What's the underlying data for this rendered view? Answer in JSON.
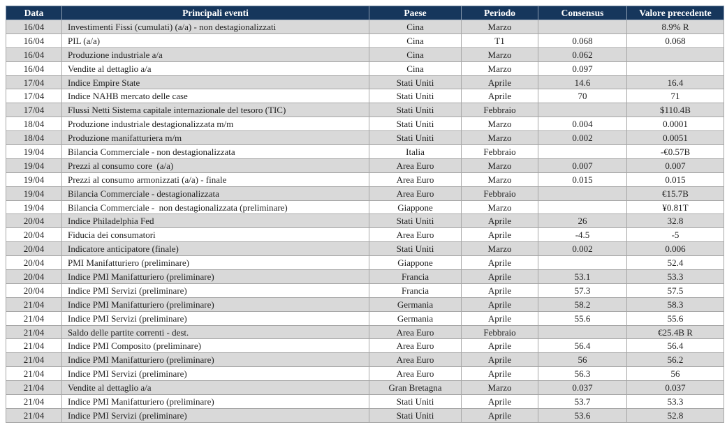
{
  "table": {
    "header": [
      "Data",
      "Principali eventi",
      "Paese",
      "Periodo",
      "Consensus",
      "Valore precedente"
    ],
    "rows": [
      [
        "16/04",
        "Investimenti Fissi (cumulati) (a/a) - non destagionalizzati",
        "Cina",
        "Marzo",
        null,
        "8.9% R"
      ],
      [
        "16/04",
        "PIL (a/a)",
        "Cina",
        "T1",
        "0.068",
        "0.068"
      ],
      [
        "16/04",
        "Produzione industriale a/a",
        "Cina",
        "Marzo",
        "0.062",
        null
      ],
      [
        "16/04",
        "Vendite al dettaglio a/a",
        "Cina",
        "Marzo",
        "0.097",
        null
      ],
      [
        "17/04",
        "Indice Empire State",
        "Stati Uniti",
        "Aprile",
        "14.6",
        "16.4"
      ],
      [
        "17/04",
        "Indice NAHB mercato delle case",
        "Stati Uniti",
        "Aprile",
        "70",
        "71"
      ],
      [
        "17/04",
        "Flussi Netti Sistema capitale internazionale del tesoro (TIC)",
        "Stati Uniti",
        "Febbraio",
        null,
        "$110.4B"
      ],
      [
        "18/04",
        "Produzione industriale destagionalizzata m/m",
        "Stati Uniti",
        "Marzo",
        "0.004",
        "0.0001"
      ],
      [
        "18/04",
        "Produzione manifatturiera m/m",
        "Stati Uniti",
        "Marzo",
        "0.002",
        "0.0051"
      ],
      [
        "19/04",
        "Bilancia Commerciale - non destagionalizzata",
        "Italia",
        "Febbraio",
        null,
        "-€0.57B"
      ],
      [
        "19/04",
        "Prezzi al consumo core  (a/a)",
        "Area Euro",
        "Marzo",
        "0.007",
        "0.007"
      ],
      [
        "19/04",
        "Prezzi al consumo armonizzati (a/a) - finale",
        "Area Euro",
        "Marzo",
        "0.015",
        "0.015"
      ],
      [
        "19/04",
        "Bilancia Commerciale - destagionalizzata",
        "Area Euro",
        "Febbraio",
        null,
        "€15.7B"
      ],
      [
        "19/04",
        "Bilancia Commerciale -  non destagionalizzata (preliminare)",
        "Giappone",
        "Marzo",
        null,
        "¥0.81T"
      ],
      [
        "20/04",
        "Indice Philadelphia Fed",
        "Stati Uniti",
        "Aprile",
        "26",
        "32.8"
      ],
      [
        "20/04",
        "Fiducia dei consumatori",
        "Area Euro",
        "Aprile",
        "-4.5",
        "-5"
      ],
      [
        "20/04",
        "Indicatore anticipatore (finale)",
        "Stati Uniti",
        "Marzo",
        "0.002",
        "0.006"
      ],
      [
        "20/04",
        "PMI Manifatturiero (preliminare)",
        "Giappone",
        "Aprile",
        null,
        "52.4"
      ],
      [
        "20/04",
        "Indice PMI Manifatturiero (preliminare)",
        "Francia",
        "Aprile",
        "53.1",
        "53.3"
      ],
      [
        "20/04",
        "Indice PMI Servizi (preliminare)",
        "Francia",
        "Aprile",
        "57.3",
        "57.5"
      ],
      [
        "21/04",
        "Indice PMI Manifatturiero (preliminare)",
        "Germania",
        "Aprile",
        "58.2",
        "58.3"
      ],
      [
        "21/04",
        "Indice PMI Servizi (preliminare)",
        "Germania",
        "Aprile",
        "55.6",
        "55.6"
      ],
      [
        "21/04",
        "Saldo delle partite correnti - dest.",
        "Area Euro",
        "Febbraio",
        null,
        "€25.4B R"
      ],
      [
        "21/04",
        "Indice PMI Composito (preliminare)",
        "Area Euro",
        "Aprile",
        "56.4",
        "56.4"
      ],
      [
        "21/04",
        "Indice PMI Manifatturiero (preliminare)",
        "Area Euro",
        "Aprile",
        "56",
        "56.2"
      ],
      [
        "21/04",
        "Indice PMI Servizi (preliminare)",
        "Area Euro",
        "Aprile",
        "56.3",
        "56"
      ],
      [
        "21/04",
        "Vendite al dettaglio a/a",
        "Gran Bretagna",
        "Marzo",
        "0.037",
        "0.037"
      ],
      [
        "21/04",
        "Indice PMI Manifatturiero (preliminare)",
        "Stati Uniti",
        "Aprile",
        "53.7",
        "53.3"
      ],
      [
        "21/04",
        "Indice PMI Servizi (preliminare)",
        "Stati Uniti",
        "Aprile",
        "53.6",
        "52.8"
      ]
    ]
  }
}
